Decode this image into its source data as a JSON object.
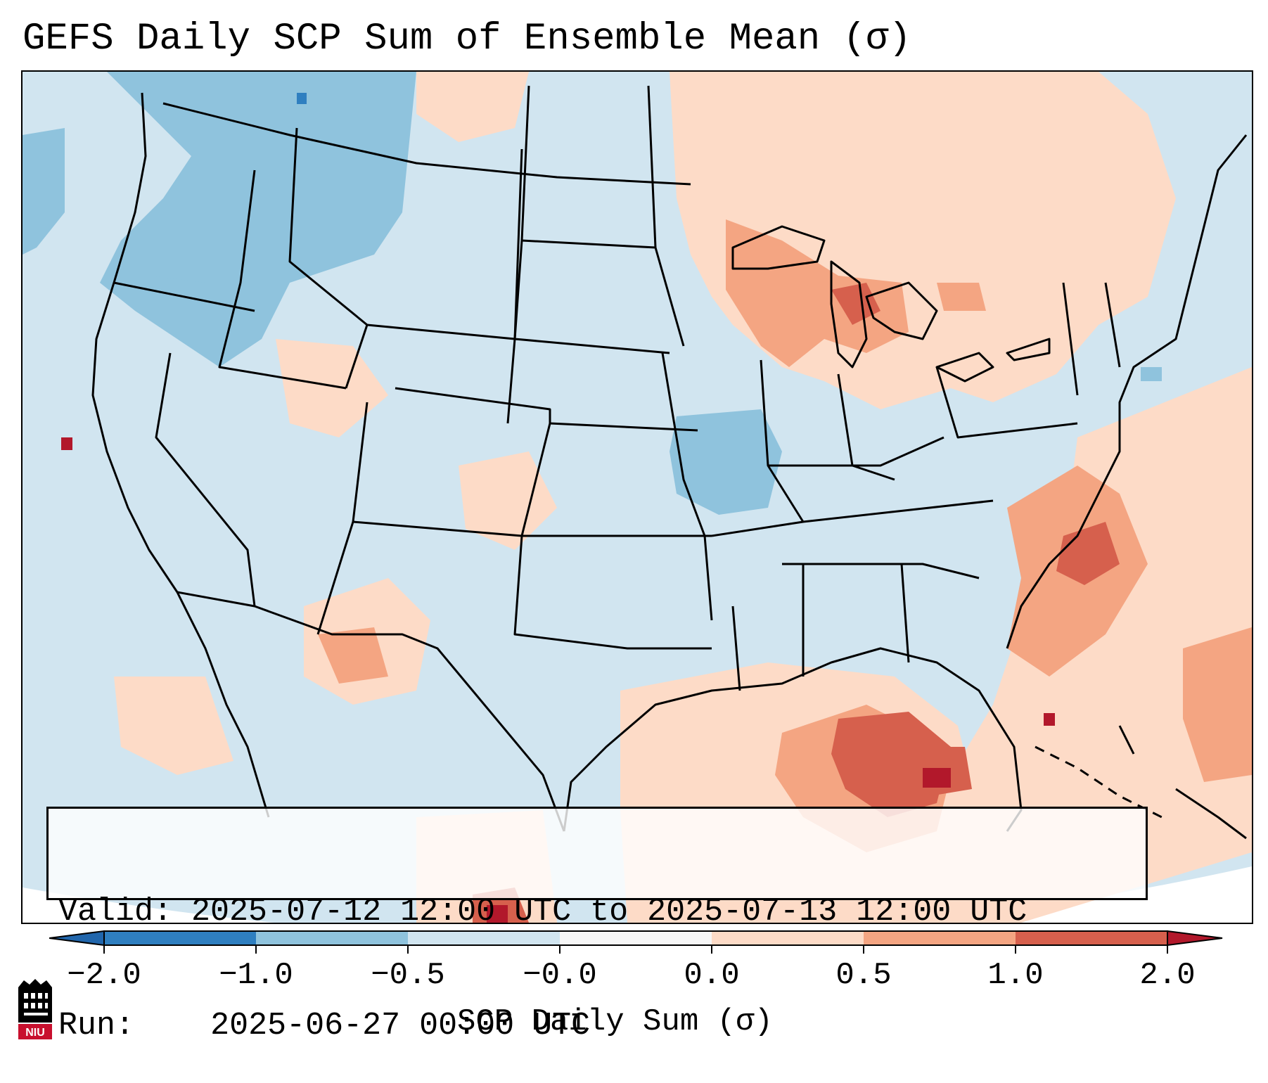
{
  "title": "GEFS Daily SCP Sum of Ensemble Mean (σ)",
  "info": {
    "valid_label": "Valid:",
    "valid_value": "2025-07-12 12:00 UTC to 2025-07-13 12:00 UTC",
    "run_label": "Run:",
    "run_value": "2025-06-27 00:00 UTC"
  },
  "colorbar": {
    "label": "SCP Daily Sum (σ)",
    "ticks": [
      "−2.0",
      "−1.0",
      "−0.5",
      "−0.0",
      "0.0",
      "0.5",
      "1.0",
      "2.0"
    ],
    "bins": [
      {
        "color": "#2f7fc0"
      },
      {
        "color": "#8fc3dd"
      },
      {
        "color": "#d1e5f0"
      },
      {
        "color": "#f7f7f7"
      },
      {
        "color": "#fddbc7"
      },
      {
        "color": "#f4a582"
      },
      {
        "color": "#d6604d"
      }
    ],
    "under_color": "#2166ac",
    "over_color": "#b2182b"
  },
  "map": {
    "projection": "Lambert Conformal (CONUS)",
    "colors": {
      "background": "#d1e5f0",
      "border": "#000000"
    }
  },
  "logo": {
    "text": "NIU",
    "color": "#c8102e"
  }
}
